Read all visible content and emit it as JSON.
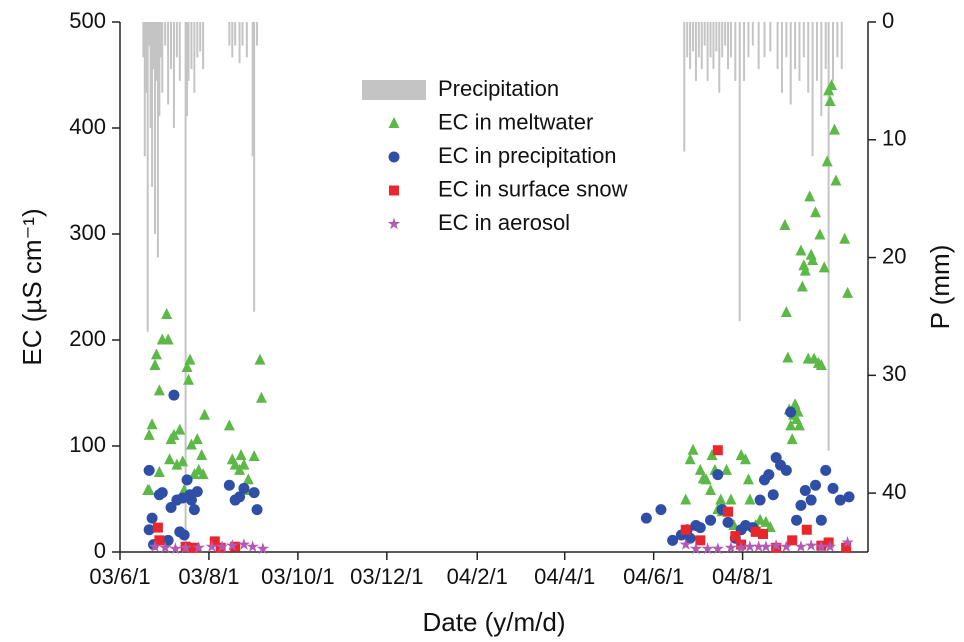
{
  "chart_data": {
    "type": "scatter",
    "xlabel": "Date (y/m/d)",
    "ylabel": "EC (µS cm⁻¹)",
    "y2label": "P (mm)",
    "xlim": [
      "03/6/1",
      "04/10/26"
    ],
    "xticks": [
      "03/6/1",
      "03/8/1",
      "03/10/1",
      "03/12/1",
      "04/2/1",
      "04/4/1",
      "04/6/1",
      "04/8/1"
    ],
    "ylim": [
      0,
      500
    ],
    "yticks": [
      0,
      100,
      200,
      300,
      400,
      500
    ],
    "y2lim": [
      45,
      0
    ],
    "y2ticks": [
      0,
      10,
      20,
      30,
      40
    ],
    "legend": "top",
    "series": [
      {
        "name": "Precipitation",
        "type": "bar",
        "axis": "y2",
        "color": "#c4c4c4",
        "x": [
          "03/6/17",
          "03/6/18",
          "03/6/19",
          "03/6/20",
          "03/6/21",
          "03/6/22",
          "03/6/23",
          "03/6/24",
          "03/6/25",
          "03/6/26",
          "03/6/27",
          "03/6/28",
          "03/6/29",
          "03/6/30",
          "03/7/2",
          "03/7/4",
          "03/7/6",
          "03/7/8",
          "03/7/10",
          "03/7/12",
          "03/7/16",
          "03/7/17",
          "03/7/18",
          "03/7/20",
          "03/7/22",
          "03/7/24",
          "03/7/26",
          "03/7/28",
          "03/8/15",
          "03/8/17",
          "03/8/19",
          "03/8/22",
          "03/8/24",
          "03/8/27",
          "03/8/31",
          "03/9/1",
          "03/9/3",
          "04/6/22",
          "04/6/24",
          "04/6/26",
          "04/6/28",
          "04/6/30",
          "04/7/2",
          "04/7/4",
          "04/7/6",
          "04/7/8",
          "04/7/10",
          "04/7/12",
          "04/7/14",
          "04/7/16",
          "04/7/18",
          "04/7/20",
          "04/7/22",
          "04/7/24",
          "04/7/27",
          "04/7/30",
          "04/8/2",
          "04/8/5",
          "04/8/8",
          "04/8/12",
          "04/8/16",
          "04/8/20",
          "04/8/25",
          "04/8/28",
          "04/8/31",
          "04/9/3",
          "04/9/6",
          "04/9/9",
          "04/9/12",
          "04/9/15",
          "04/9/18",
          "04/9/21",
          "04/9/24",
          "04/9/27",
          "04/9/29",
          "04/10/2",
          "04/10/5",
          "04/10/8"
        ],
        "values": [
          3,
          11.4,
          6,
          26.3,
          2,
          9,
          14,
          4,
          18,
          5,
          20,
          8,
          3,
          6,
          2,
          7,
          4,
          9,
          3,
          5,
          45,
          8,
          5,
          4,
          6,
          3,
          2.5,
          4,
          2,
          3,
          2,
          3.5,
          2,
          3,
          11.4,
          24.6,
          2,
          11,
          3,
          4,
          2.5,
          5,
          3,
          4,
          2,
          5,
          3,
          4,
          2.5,
          6,
          3,
          2,
          4,
          3,
          5,
          25.4,
          5,
          3,
          2,
          4,
          3,
          2.5,
          4,
          6,
          3,
          7,
          4,
          5,
          3,
          6,
          11.4,
          5,
          8,
          4,
          36.4,
          5,
          3,
          4
        ]
      },
      {
        "name": "EC in meltwater",
        "type": "scatter",
        "marker": "triangle",
        "color": "#5cb947",
        "x": [
          "03/6/20",
          "03/6/21",
          "03/6/21",
          "03/6/23",
          "03/6/25",
          "03/6/26",
          "03/6/28",
          "03/6/30",
          "03/7/3",
          "03/7/4",
          "03/6/28",
          "03/7/5",
          "03/7/6",
          "03/7/8",
          "03/7/10",
          "03/7/12",
          "03/7/14",
          "03/7/15",
          "03/7/17",
          "03/7/19",
          "03/7/18",
          "03/7/20",
          "03/7/22",
          "03/7/24",
          "03/7/25",
          "03/7/27",
          "03/7/29",
          "03/7/28",
          "03/8/15",
          "03/8/17",
          "03/8/19",
          "03/8/22",
          "03/8/23",
          "03/8/25",
          "03/8/27",
          "03/8/28",
          "03/9/1",
          "03/9/5",
          "03/9/6",
          "04/6/23",
          "04/6/26",
          "04/6/28",
          "04/7/3",
          "04/7/5",
          "04/7/7",
          "04/7/10",
          "04/7/11",
          "04/7/13",
          "04/7/15",
          "04/7/17",
          "04/7/18",
          "04/7/21",
          "04/7/24",
          "04/7/26",
          "04/7/31",
          "04/8/3",
          "04/8/5",
          "04/8/6",
          "04/8/10",
          "04/8/13",
          "04/8/17",
          "04/8/20",
          "04/8/30",
          "04/8/31",
          "04/9/1",
          "04/9/2",
          "04/9/3",
          "04/9/4",
          "04/9/5",
          "04/9/6",
          "04/9/7",
          "04/9/8",
          "04/9/9",
          "04/9/10",
          "04/9/11",
          "04/9/12",
          "04/9/13",
          "04/9/15",
          "04/9/16",
          "04/9/17",
          "04/9/18",
          "04/9/19",
          "04/9/20",
          "04/9/22",
          "04/9/23",
          "04/9/24",
          "04/9/26",
          "04/9/28",
          "04/9/29",
          "04/9/30",
          "04/10/1",
          "04/10/3",
          "04/10/4",
          "04/10/10",
          "04/10/12"
        ],
        "values": [
          58,
          58,
          110,
          120,
          176,
          186,
          152,
          200,
          224,
          200,
          75,
          87,
          106,
          110,
          82,
          115,
          85,
          58,
          174,
          181,
          162,
          101,
          73,
          106,
          77,
          91,
          129,
          73,
          119,
          87,
          82,
          77,
          91,
          82,
          58,
          68,
          90,
          181,
          145,
          49,
          87,
          96,
          77,
          69,
          68,
          58,
          91,
          77,
          40,
          49,
          38,
          77,
          49,
          25,
          91,
          87,
          68,
          49,
          25,
          30,
          28,
          23,
          308,
          226,
          183,
          134,
          119,
          106,
          129,
          139,
          125,
          132,
          119,
          284,
          250,
          270,
          265,
          182,
          335,
          280,
          275,
          182,
          320,
          178,
          299,
          176,
          268,
          368,
          435,
          425,
          440,
          398,
          350,
          295,
          244
        ]
      },
      {
        "name": "EC in precipitation",
        "type": "scatter",
        "marker": "circle",
        "color": "#2f4ea6",
        "x": [
          "03/6/21",
          "03/6/21",
          "03/6/23",
          "03/6/24",
          "03/6/28",
          "03/6/30",
          "03/7/4",
          "03/7/6",
          "03/7/8",
          "03/7/10",
          "03/7/12",
          "03/7/14",
          "03/7/15",
          "03/7/17",
          "03/7/19",
          "03/7/20",
          "03/7/22",
          "03/7/24",
          "03/8/15",
          "03/8/19",
          "03/8/22",
          "03/8/25",
          "03/9/1",
          "03/9/3",
          "04/5/27",
          "04/6/6",
          "04/6/14",
          "04/6/20",
          "04/6/24",
          "04/6/26",
          "04/6/30",
          "04/7/3",
          "04/7/10",
          "04/7/15",
          "04/7/18",
          "04/7/22",
          "04/7/27",
          "04/7/31",
          "04/8/3",
          "04/8/8",
          "04/8/13",
          "04/8/16",
          "04/8/19",
          "04/8/22",
          "04/8/24",
          "04/8/27",
          "04/8/31",
          "04/9/3",
          "04/9/7",
          "04/9/10",
          "04/9/13",
          "04/9/17",
          "04/9/20",
          "04/9/24",
          "04/9/27",
          "04/10/2",
          "04/10/7",
          "04/10/13"
        ],
        "values": [
          77,
          21,
          32,
          7,
          54,
          56,
          11,
          42,
          148,
          49,
          19,
          51,
          16,
          68,
          54,
          49,
          40,
          57,
          63,
          49,
          52,
          60,
          56,
          40,
          32,
          40,
          11,
          16,
          21,
          13,
          25,
          23,
          30,
          73,
          40,
          28,
          13,
          21,
          25,
          23,
          49,
          68,
          73,
          54,
          89,
          82,
          77,
          132,
          30,
          44,
          58,
          49,
          63,
          30,
          77,
          60,
          49,
          52
        ]
      },
      {
        "name": "EC in surface snow",
        "type": "scatter",
        "marker": "square",
        "color": "#e8262b",
        "x": [
          "03/6/27",
          "03/6/28",
          "03/7/16",
          "03/7/22",
          "03/8/5",
          "03/8/9",
          "03/8/19",
          "04/6/23",
          "04/7/3",
          "04/7/15",
          "04/7/22",
          "04/7/27",
          "04/7/31",
          "04/8/10",
          "04/8/15",
          "04/8/24",
          "04/9/4",
          "04/9/14",
          "04/9/24",
          "04/9/29",
          "04/10/11"
        ],
        "values": [
          23,
          11,
          5,
          4,
          10,
          4,
          5,
          21,
          11,
          96,
          38,
          15,
          7,
          19,
          17,
          4,
          11,
          21,
          6,
          9,
          4
        ]
      },
      {
        "name": "EC in aerosol",
        "type": "scatter",
        "marker": "star",
        "color": "#b45ab4",
        "x": [
          "03/6/25",
          "03/7/2",
          "03/7/9",
          "03/7/16",
          "03/7/25",
          "03/8/3",
          "03/8/10",
          "03/8/17",
          "03/8/25",
          "03/8/31",
          "03/9/7",
          "04/6/23",
          "04/6/30",
          "04/7/8",
          "04/7/15",
          "04/7/24",
          "04/7/31",
          "04/8/6",
          "04/8/12",
          "04/8/17",
          "04/8/24",
          "04/8/31",
          "04/9/10",
          "04/9/17",
          "04/9/24",
          "04/9/30",
          "04/10/12"
        ],
        "values": [
          5,
          4,
          3,
          4,
          4,
          5,
          5,
          6,
          7,
          5,
          3,
          7,
          3,
          3,
          3,
          4,
          4,
          5,
          5,
          5,
          6,
          5,
          5,
          6,
          5,
          5,
          9
        ]
      }
    ]
  }
}
